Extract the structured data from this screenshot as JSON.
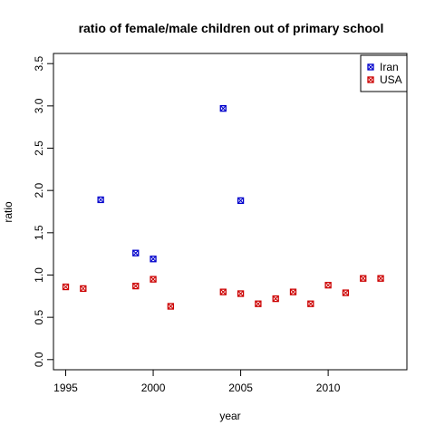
{
  "chart_data": {
    "type": "scatter",
    "title": "ratio of female/male children out of primary school",
    "xlabel": "year",
    "ylabel": "ratio",
    "xlim": [
      1994.3,
      2014.5
    ],
    "ylim": [
      -0.12,
      3.62
    ],
    "x_ticks": [
      1995,
      2000,
      2005,
      2010
    ],
    "y_ticks": [
      0.0,
      0.5,
      1.0,
      1.5,
      2.0,
      2.5,
      3.0,
      3.5
    ],
    "x_tick_labels": [
      "1995",
      "2000",
      "2005",
      "2010"
    ],
    "y_tick_labels": [
      "0.0",
      "0.5",
      "1.0",
      "1.5",
      "2.0",
      "2.5",
      "3.0",
      "3.5"
    ],
    "grid": false,
    "legend_position": "top-right",
    "series": [
      {
        "name": "Iran",
        "color": "#0000cc",
        "points": [
          {
            "x": 1997,
            "y": 1.89
          },
          {
            "x": 1999,
            "y": 1.26
          },
          {
            "x": 2000,
            "y": 1.19
          },
          {
            "x": 2004,
            "y": 2.97
          },
          {
            "x": 2005,
            "y": 1.88
          }
        ]
      },
      {
        "name": "USA",
        "color": "#cc0000",
        "points": [
          {
            "x": 1995,
            "y": 0.86
          },
          {
            "x": 1996,
            "y": 0.84
          },
          {
            "x": 1999,
            "y": 0.87
          },
          {
            "x": 2000,
            "y": 0.95
          },
          {
            "x": 2001,
            "y": 0.63
          },
          {
            "x": 2004,
            "y": 0.8
          },
          {
            "x": 2005,
            "y": 0.78
          },
          {
            "x": 2006,
            "y": 0.66
          },
          {
            "x": 2007,
            "y": 0.72
          },
          {
            "x": 2008,
            "y": 0.8
          },
          {
            "x": 2009,
            "y": 0.66
          },
          {
            "x": 2010,
            "y": 0.88
          },
          {
            "x": 2011,
            "y": 0.79
          },
          {
            "x": 2012,
            "y": 0.96
          },
          {
            "x": 2013,
            "y": 0.96
          }
        ]
      }
    ]
  }
}
